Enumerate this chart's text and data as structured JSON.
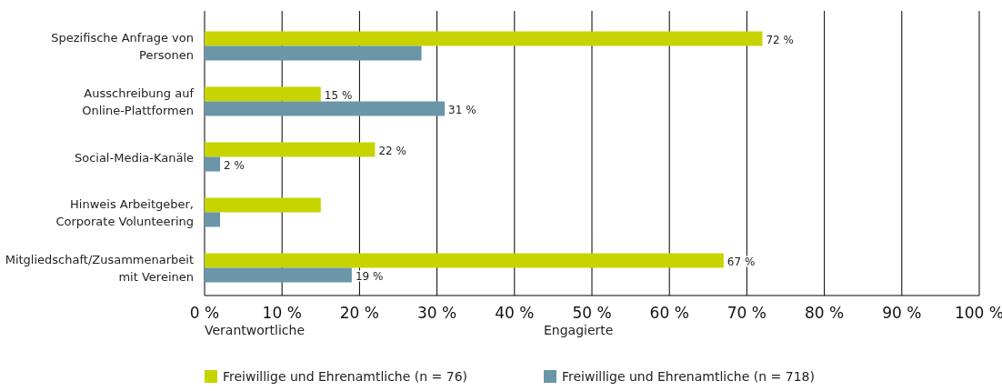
{
  "chart_data": {
    "type": "bar",
    "orientation": "horizontal",
    "categories": [
      "Spezifische Anfrage von Personen",
      "Ausschreibung auf Online-Plattformen",
      "Social-Media-Kanäle",
      "Hinweis Arbeitgeber, Corporate Volunteering",
      "Mitgliedschaft/Zusammenarbeit mit Vereinen"
    ],
    "series": [
      {
        "name": "Freiwillige und Ehrenamtliche (n = 76)",
        "color": "#c8d400",
        "values": [
          72,
          15,
          22,
          15,
          67
        ],
        "value_labels": [
          "72 %",
          "15 %",
          "22 %",
          null,
          "67 %"
        ]
      },
      {
        "name": "Freiwillige und Ehrenamtliche (n = 718)",
        "color": "#6a96a8",
        "values": [
          28,
          31,
          2,
          2,
          19
        ],
        "value_labels": [
          null,
          "31 %",
          "2 %",
          null,
          "19 %"
        ]
      }
    ],
    "annotations": [
      "Verantwortliche",
      "Engagierte"
    ],
    "xlim": [
      0,
      100
    ],
    "xticks": [
      {
        "value": 0,
        "label": "0 %"
      },
      {
        "value": 10,
        "label": "10 %"
      },
      {
        "value": 20,
        "label": "20 %"
      },
      {
        "value": 30,
        "label": "30 %"
      },
      {
        "value": 40,
        "label": "40 %"
      },
      {
        "value": 50,
        "label": "50 %"
      },
      {
        "value": 60,
        "label": "60 %"
      },
      {
        "value": 70,
        "label": "70 %"
      },
      {
        "value": 80,
        "label": "80 %"
      },
      {
        "value": 90,
        "label": "90 %"
      },
      {
        "value": 100,
        "label": "100 %"
      }
    ],
    "grid": "x",
    "legend": "bottom left"
  }
}
